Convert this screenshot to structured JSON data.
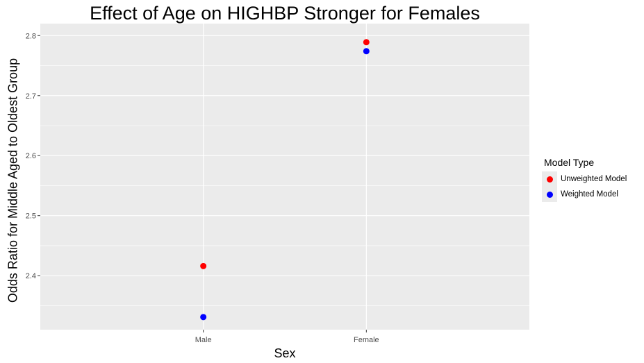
{
  "chart_data": {
    "type": "scatter",
    "title": "Effect of Age on HIGHBP Stronger for Females",
    "xlabel": "Sex",
    "ylabel": "Odds Ratio for Middle Aged to Oldest Group",
    "categories": [
      "Male",
      "Female"
    ],
    "ylim": [
      2.31,
      2.82
    ],
    "yticks": [
      2.4,
      2.5,
      2.6,
      2.7,
      2.8
    ],
    "ytick_labels": [
      "2.4",
      "2.5",
      "2.6",
      "2.7",
      "2.8"
    ],
    "grid": true,
    "legend_position": "right",
    "legend_title": "Model Type",
    "series": [
      {
        "name": "Unweighted Model",
        "color": "#ff0000",
        "values": [
          2.416,
          2.789
        ]
      },
      {
        "name": "Weighted Model",
        "color": "#0000ff",
        "values": [
          2.331,
          2.774
        ]
      }
    ],
    "colors": {
      "panel_background": "#ebebeb",
      "grid_line": "#ffffff",
      "tick_text": "#4d4d4d"
    }
  }
}
